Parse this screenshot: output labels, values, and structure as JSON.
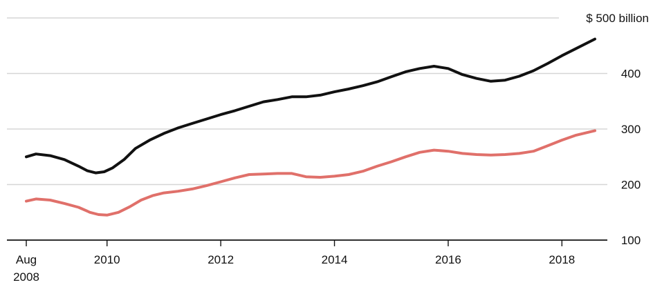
{
  "chart_data": {
    "type": "line",
    "y_unit_label": "$ 500 billion",
    "ylim": [
      100,
      500
    ],
    "yticks": [
      {
        "value": 100,
        "label": "100"
      },
      {
        "value": 200,
        "label": "200"
      },
      {
        "value": 300,
        "label": "300"
      },
      {
        "value": 400,
        "label": "400"
      },
      {
        "value": 500,
        "label": "$ 500 billion"
      }
    ],
    "xlim": [
      2008.58,
      2018.58
    ],
    "xticks": [
      {
        "value": 2008.58,
        "label": "Aug",
        "sublabel": "2008"
      },
      {
        "value": 2010,
        "label": "2010"
      },
      {
        "value": 2012,
        "label": "2012"
      },
      {
        "value": 2014,
        "label": "2014"
      },
      {
        "value": 2016,
        "label": "2016"
      },
      {
        "value": 2018,
        "label": "2018"
      }
    ],
    "grid": true,
    "legend": "none",
    "series": [
      {
        "color": "#111111",
        "x": [
          2008.58,
          2008.75,
          2009.0,
          2009.25,
          2009.5,
          2009.65,
          2009.8,
          2009.95,
          2010.1,
          2010.3,
          2010.5,
          2010.75,
          2011.0,
          2011.25,
          2011.5,
          2011.75,
          2012.0,
          2012.25,
          2012.5,
          2012.75,
          2013.0,
          2013.25,
          2013.5,
          2013.75,
          2014.0,
          2014.25,
          2014.5,
          2014.75,
          2015.0,
          2015.25,
          2015.5,
          2015.75,
          2016.0,
          2016.25,
          2016.5,
          2016.75,
          2017.0,
          2017.25,
          2017.5,
          2017.75,
          2018.0,
          2018.25,
          2018.58
        ],
        "values": [
          250,
          255,
          252,
          245,
          233,
          225,
          221,
          223,
          230,
          245,
          265,
          280,
          292,
          302,
          310,
          318,
          326,
          333,
          341,
          349,
          353,
          358,
          358,
          361,
          367,
          372,
          378,
          385,
          394,
          403,
          409,
          413,
          409,
          398,
          391,
          386,
          388,
          395,
          405,
          418,
          432,
          445,
          462
        ]
      },
      {
        "color": "#e0706a",
        "x": [
          2008.58,
          2008.75,
          2009.0,
          2009.25,
          2009.5,
          2009.7,
          2009.85,
          2010.0,
          2010.2,
          2010.4,
          2010.6,
          2010.8,
          2011.0,
          2011.25,
          2011.5,
          2011.75,
          2012.0,
          2012.25,
          2012.5,
          2012.75,
          2013.0,
          2013.25,
          2013.5,
          2013.75,
          2014.0,
          2014.25,
          2014.5,
          2014.75,
          2015.0,
          2015.25,
          2015.5,
          2015.75,
          2016.0,
          2016.25,
          2016.5,
          2016.75,
          2017.0,
          2017.25,
          2017.5,
          2017.75,
          2018.0,
          2018.25,
          2018.58
        ],
        "values": [
          170,
          174,
          172,
          166,
          159,
          150,
          146,
          145,
          150,
          160,
          172,
          180,
          185,
          188,
          192,
          198,
          205,
          212,
          218,
          219,
          220,
          220,
          214,
          213,
          215,
          218,
          224,
          233,
          241,
          250,
          258,
          262,
          260,
          256,
          254,
          253,
          254,
          256,
          260,
          270,
          280,
          289,
          297
        ]
      }
    ]
  }
}
